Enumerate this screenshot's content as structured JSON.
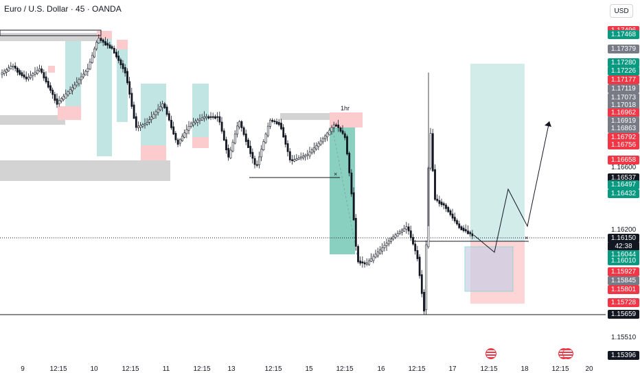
{
  "header": {
    "title": "Euro / U.S. Dollar · 45 · OANDA"
  },
  "price_scale": {
    "currency": "USD",
    "tags": [
      {
        "label": "1.17496",
        "color": "#f23645"
      },
      {
        "label": "1.17468",
        "color": "#089981"
      },
      {
        "label": "1.17379",
        "color": "#787b86"
      },
      {
        "label": "1.17280",
        "color": "#089981"
      },
      {
        "label": "1.17226",
        "color": "#089981"
      },
      {
        "label": "1.17177",
        "color": "#f23645"
      },
      {
        "label": "1.17119",
        "color": "#787b86"
      },
      {
        "label": "1.17073",
        "color": "#787b86"
      },
      {
        "label": "1.17018",
        "color": "#787b86"
      },
      {
        "label": "1.16962",
        "color": "#f23645"
      },
      {
        "label": "1.16919",
        "color": "#787b86"
      },
      {
        "label": "1.16863",
        "color": "#787b86"
      },
      {
        "label": "1.16792",
        "color": "#f23645"
      },
      {
        "label": "1.16756",
        "color": "#f23645"
      },
      {
        "label": "1.16658",
        "color": "#f23645"
      },
      {
        "label": "1.16537",
        "color": "#131722"
      },
      {
        "label": "1.16497",
        "color": "#089981"
      },
      {
        "label": "1.16432",
        "color": "#089981"
      },
      {
        "label": "1.16150",
        "color": "#131722"
      },
      {
        "label": "42:38",
        "color": "#131722"
      },
      {
        "label": "1.16044",
        "color": "#089981"
      },
      {
        "label": "1.16010",
        "color": "#089981"
      },
      {
        "label": "1.15927",
        "color": "#f23645"
      },
      {
        "label": "1.15845",
        "color": "#787b86"
      },
      {
        "label": "1.15801",
        "color": "#f23645"
      },
      {
        "label": "1.15728",
        "color": "#f23645"
      },
      {
        "label": "1.15659",
        "color": "#131722"
      },
      {
        "label": "1.15396",
        "color": "#131722"
      }
    ],
    "plain_labels": [
      "1.16600",
      "1.16200",
      "1.15510"
    ]
  },
  "time_axis": [
    "9",
    "12:15",
    "10",
    "12:15",
    "11",
    "12:15",
    "13",
    "12:15",
    "15",
    "12:15",
    "16",
    "12:15",
    "17",
    "12:15",
    "18",
    "12:15",
    "20"
  ],
  "annotations": {
    "timeframe_label": "1hr",
    "cross_marker": "×"
  },
  "events": [
    {
      "icon": "us-flag-icon"
    },
    {
      "icon": "us-flag-icon"
    }
  ],
  "colors": {
    "up": "#089981",
    "down": "#f23645",
    "neutral": "#787b86",
    "zone_green": "#b2dfdb",
    "zone_red": "#fccbcd",
    "zone_gray": "#d1d4dc"
  }
}
